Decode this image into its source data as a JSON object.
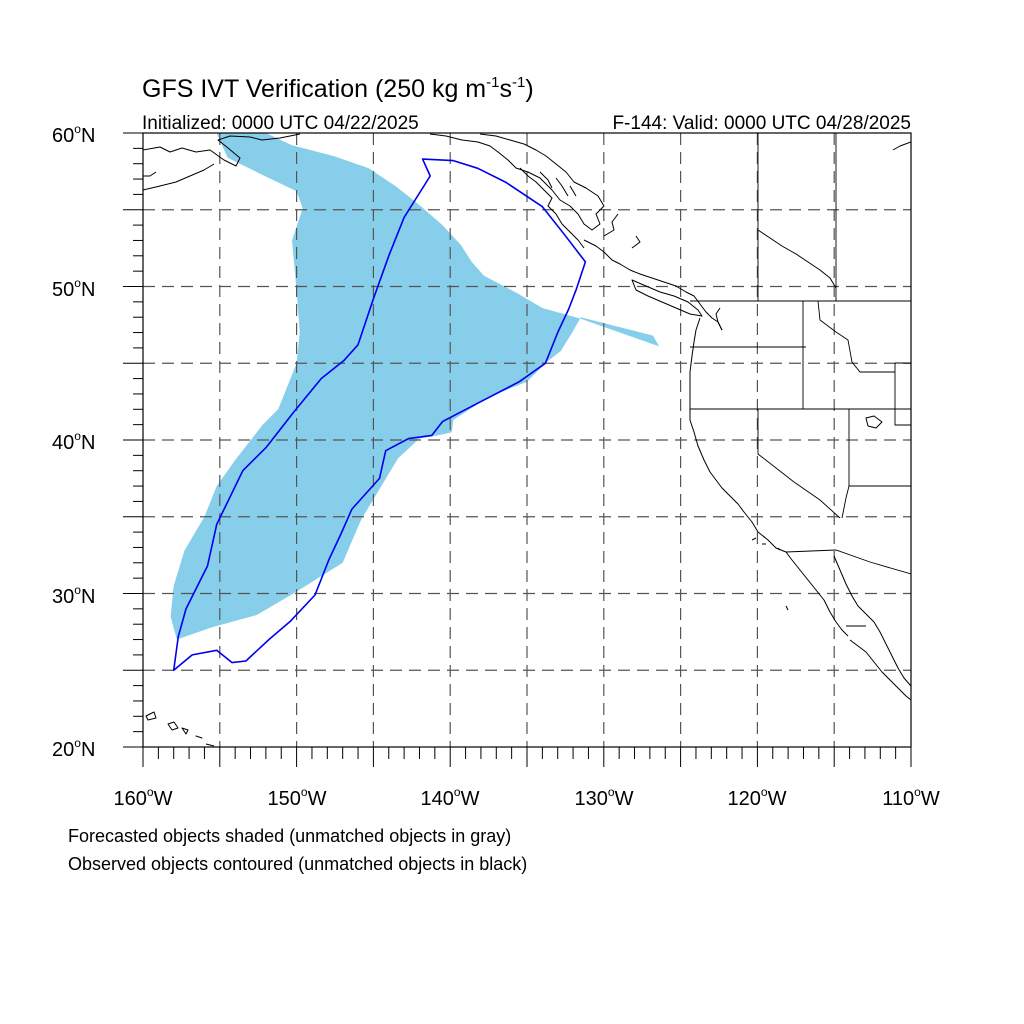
{
  "title": {
    "main": "GFS IVT Verification (250 kg m",
    "sup1": "-1",
    "mid": "s",
    "sup2": "-1",
    "end": ")"
  },
  "subtitle_left": "Initialized: 0000 UTC 04/22/2025",
  "subtitle_right": "F-144: Valid: 0000 UTC 04/28/2025",
  "footnotes": [
    "Forecasted objects shaded (unmatched objects in gray)",
    "Observed objects contoured (unmatched objects in black)"
  ],
  "map": {
    "projection": "cylindrical equidistant",
    "lon_range": [
      -160,
      -110
    ],
    "lat_range": [
      20,
      60
    ],
    "lat_labels": [
      "60",
      "50",
      "40",
      "30",
      "20"
    ],
    "lon_labels": [
      "160",
      "150",
      "140",
      "130",
      "120",
      "110"
    ],
    "lat_suffix": "N",
    "lon_suffix": "W",
    "gridlines": "dashed every 5 degrees",
    "colors": {
      "forecast_fill": "#87CEEB",
      "observed_contour": "#0000EE",
      "coastline": "#000000",
      "gridline": "#555555"
    }
  },
  "chart_data": {
    "type": "map",
    "forecast_object_vertices_lonlat": [
      [
        -157.8,
        27.0
      ],
      [
        -155.5,
        27.8
      ],
      [
        -152.6,
        28.6
      ],
      [
        -150.2,
        30.0
      ],
      [
        -147.0,
        32.0
      ],
      [
        -145.8,
        34.8
      ],
      [
        -144.6,
        36.8
      ],
      [
        -143.4,
        38.8
      ],
      [
        -142.0,
        40.1
      ],
      [
        -140.8,
        40.3
      ],
      [
        -139.9,
        40.5
      ],
      [
        -139.8,
        41.3
      ],
      [
        -137.5,
        42.8
      ],
      [
        -135.0,
        43.8
      ],
      [
        -133.7,
        45.1
      ],
      [
        -132.8,
        45.8
      ],
      [
        -132.0,
        47.1
      ],
      [
        -131.5,
        48.0
      ],
      [
        -126.8,
        46.8
      ],
      [
        -126.4,
        46.1
      ],
      [
        -131.5,
        47.9
      ],
      [
        -134.0,
        48.6
      ],
      [
        -135.7,
        49.6
      ],
      [
        -137.8,
        50.7
      ],
      [
        -138.6,
        51.6
      ],
      [
        -139.3,
        52.7
      ],
      [
        -140.5,
        54.0
      ],
      [
        -142.0,
        55.3
      ],
      [
        -143.5,
        56.5
      ],
      [
        -145.3,
        57.7
      ],
      [
        -147.6,
        58.5
      ],
      [
        -150.3,
        59.2
      ],
      [
        -152.0,
        60.0
      ],
      [
        -155.2,
        60.0
      ],
      [
        -154.5,
        58.4
      ],
      [
        -152.3,
        57.3
      ],
      [
        -150.0,
        56.2
      ],
      [
        -149.6,
        55.1
      ],
      [
        -150.3,
        53.0
      ],
      [
        -150.0,
        49.8
      ],
      [
        -149.8,
        47.0
      ],
      [
        -150.0,
        45.0
      ],
      [
        -151.2,
        42.0
      ],
      [
        -152.2,
        41.0
      ],
      [
        -154.0,
        38.7
      ],
      [
        -155.2,
        37.0
      ],
      [
        -156.0,
        35.0
      ],
      [
        -157.3,
        32.8
      ],
      [
        -158.0,
        30.5
      ],
      [
        -158.2,
        28.5
      ]
    ],
    "observed_object_vertices_lonlat": [
      [
        -158.0,
        25.0
      ],
      [
        -156.8,
        26.0
      ],
      [
        -155.2,
        26.3
      ],
      [
        -154.2,
        25.5
      ],
      [
        -153.3,
        25.6
      ],
      [
        -151.8,
        27.0
      ],
      [
        -150.4,
        28.2
      ],
      [
        -148.8,
        29.9
      ],
      [
        -147.9,
        32.2
      ],
      [
        -147.1,
        33.9
      ],
      [
        -146.4,
        35.5
      ],
      [
        -144.6,
        37.5
      ],
      [
        -144.2,
        39.3
      ],
      [
        -142.7,
        40.1
      ],
      [
        -141.2,
        40.3
      ],
      [
        -140.5,
        41.2
      ],
      [
        -138.0,
        42.5
      ],
      [
        -135.5,
        43.8
      ],
      [
        -133.8,
        45.0
      ],
      [
        -133.0,
        47.0
      ],
      [
        -132.3,
        48.5
      ],
      [
        -131.8,
        49.8
      ],
      [
        -131.2,
        51.6
      ],
      [
        -132.5,
        53.3
      ],
      [
        -134.0,
        55.2
      ],
      [
        -136.4,
        56.8
      ],
      [
        -138.2,
        57.7
      ],
      [
        -139.8,
        58.2
      ],
      [
        -141.8,
        58.3
      ],
      [
        -141.3,
        57.2
      ],
      [
        -143.0,
        54.5
      ],
      [
        -144.0,
        52.0
      ],
      [
        -145.0,
        49.2
      ],
      [
        -146.0,
        46.2
      ],
      [
        -146.9,
        45.2
      ],
      [
        -148.4,
        44.0
      ],
      [
        -150.2,
        41.8
      ],
      [
        -152.0,
        39.5
      ],
      [
        -153.5,
        38.0
      ],
      [
        -155.2,
        34.5
      ],
      [
        -155.8,
        31.8
      ],
      [
        -157.2,
        29.0
      ],
      [
        -157.7,
        27.2
      ]
    ]
  }
}
